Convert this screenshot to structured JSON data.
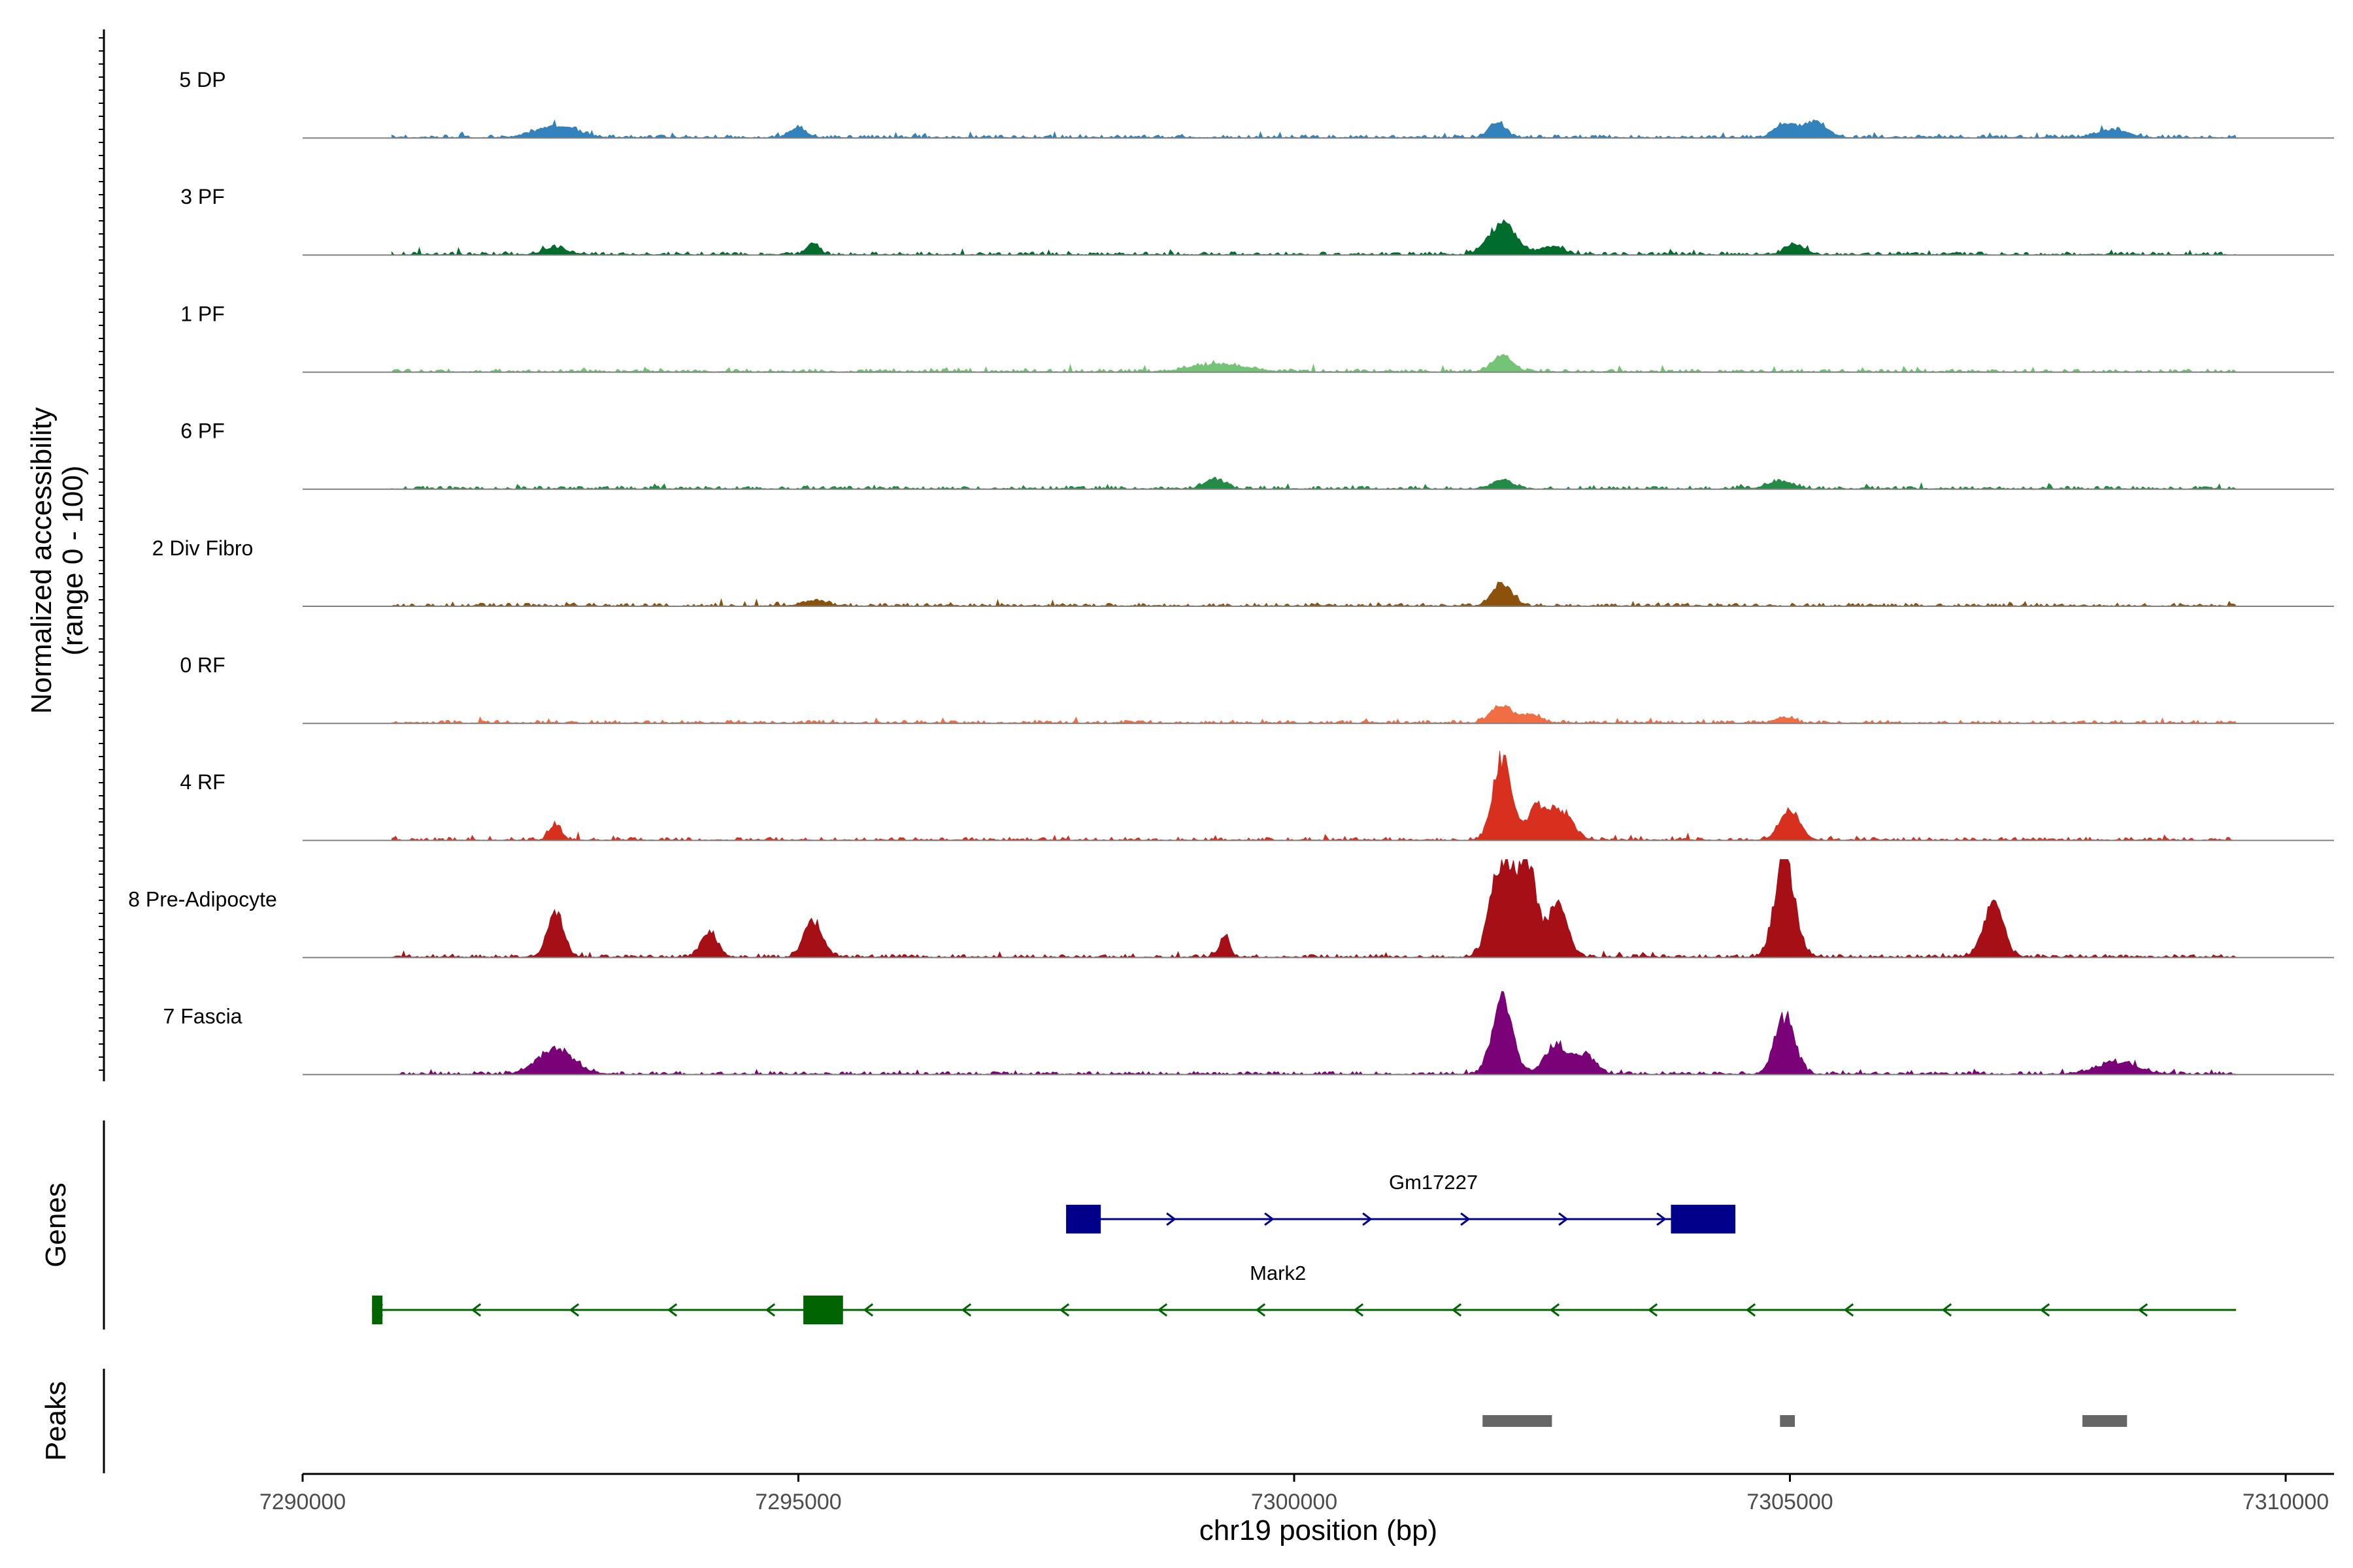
{
  "chart_data": {
    "type": "area",
    "title": "",
    "xlabel": "chr19 position (bp)",
    "ylabel": [
      "Normalized accessibility",
      "(range 0 - 100)"
    ],
    "xlim": [
      7290000,
      7310000
    ],
    "xticks": [
      7290000,
      7295000,
      7300000,
      7305000,
      7310000
    ],
    "xtick_labels": [
      "7290000",
      "7295000",
      "7300000",
      "7305000",
      "7310000"
    ],
    "ylim": [
      0,
      100
    ],
    "coverage_x_range": [
      7290900,
      7309500
    ],
    "tracks": [
      {
        "name": "5 DP",
        "color": "#3182bd",
        "peaks": [
          [
            7292550,
            200,
            12
          ],
          [
            7295000,
            80,
            10
          ],
          [
            7302050,
            80,
            15
          ],
          [
            7304950,
            100,
            14
          ],
          [
            7305250,
            120,
            16
          ],
          [
            7308250,
            150,
            8
          ]
        ]
      },
      {
        "name": "3 PF",
        "color": "#006d2c",
        "peaks": [
          [
            7292550,
            120,
            7
          ],
          [
            7295150,
            60,
            12
          ],
          [
            7302100,
            130,
            32
          ],
          [
            7302600,
            120,
            8
          ],
          [
            7305050,
            100,
            10
          ]
        ]
      },
      {
        "name": "1 PF",
        "color": "#74c476",
        "peaks": [
          [
            7299250,
            250,
            8
          ],
          [
            7302100,
            100,
            17
          ]
        ]
      },
      {
        "name": "6 PF",
        "color": "#238b45",
        "peaks": [
          [
            7299200,
            100,
            10
          ],
          [
            7302100,
            100,
            9
          ],
          [
            7304900,
            120,
            8
          ]
        ]
      },
      {
        "name": "2 Div Fibro",
        "color": "#8c510a",
        "peaks": [
          [
            7302100,
            100,
            22
          ],
          [
            7295150,
            120,
            5
          ]
        ]
      },
      {
        "name": "0 RF",
        "color": "#f16d43",
        "peaks": [
          [
            7302100,
            110,
            18
          ],
          [
            7302400,
            80,
            9
          ],
          [
            7304950,
            80,
            6
          ]
        ]
      },
      {
        "name": "4 RF",
        "color": "#d7301f",
        "peaks": [
          [
            7302100,
            90,
            85
          ],
          [
            7302450,
            110,
            32
          ],
          [
            7302700,
            110,
            28
          ],
          [
            7305000,
            100,
            30
          ],
          [
            7292550,
            60,
            15
          ]
        ]
      },
      {
        "name": "8 Pre-Adipocyte",
        "color": "#a50f15",
        "peaks": [
          [
            7292550,
            80,
            48
          ],
          [
            7294100,
            80,
            25
          ],
          [
            7295150,
            90,
            38
          ],
          [
            7299300,
            50,
            22
          ],
          [
            7302100,
            110,
            100
          ],
          [
            7302350,
            90,
            95
          ],
          [
            7302650,
            100,
            52
          ],
          [
            7304950,
            100,
            100
          ],
          [
            7307050,
            100,
            55
          ]
        ]
      },
      {
        "name": "7 Fascia",
        "color": "#7a0177",
        "peaks": [
          [
            7292550,
            180,
            25
          ],
          [
            7302100,
            100,
            80
          ],
          [
            7302650,
            120,
            30
          ],
          [
            7302950,
            100,
            18
          ],
          [
            7304950,
            100,
            58
          ],
          [
            7308300,
            200,
            12
          ]
        ]
      }
    ],
    "genes": [
      {
        "name": "Gm17227",
        "strand": "+",
        "start": 7297700,
        "end": 7304450,
        "color": "#00008b",
        "exons": [
          [
            7297700,
            7298050
          ],
          [
            7303800,
            7304450
          ]
        ]
      },
      {
        "name": "Mark2",
        "strand": "-",
        "start": 7290700,
        "end": 7309500,
        "color": "#006400",
        "exons": [
          [
            7290700,
            7290800
          ],
          [
            7295050,
            7295450
          ]
        ]
      }
    ],
    "peak_regions": [
      [
        7301900,
        7302600
      ],
      [
        7304900,
        7305050
      ],
      [
        7307950,
        7308400
      ]
    ],
    "section_labels": {
      "genes": "Genes",
      "peaks": "Peaks"
    },
    "colors": {
      "axis": "#000000",
      "baseline": "#808080",
      "peak_region": "#666666",
      "tick_label": "#4d4d4d"
    }
  }
}
